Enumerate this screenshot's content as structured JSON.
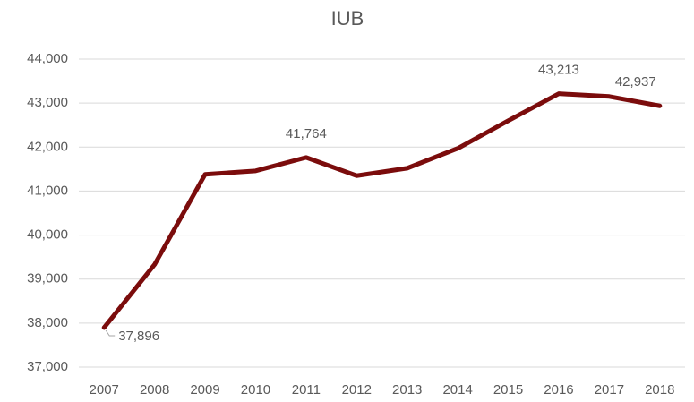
{
  "chart_data": {
    "type": "line",
    "title": "IUB",
    "categories": [
      "2007",
      "2008",
      "2009",
      "2010",
      "2011",
      "2012",
      "2013",
      "2014",
      "2015",
      "2016",
      "2017",
      "2018"
    ],
    "series": [
      {
        "name": "IUB",
        "color": "#7b0c0c",
        "values": [
          37896,
          39330,
          41380,
          41460,
          41764,
          41350,
          41520,
          41970,
          42600,
          43213,
          43150,
          42937
        ],
        "value_labels": [
          "37,896",
          null,
          null,
          null,
          "41,764",
          null,
          null,
          null,
          null,
          "43,213",
          null,
          "42,937"
        ]
      }
    ],
    "ylim": [
      37000,
      44000
    ],
    "yticks": [
      {
        "value": 37000,
        "label": "37,000"
      },
      {
        "value": 38000,
        "label": "38,000"
      },
      {
        "value": 39000,
        "label": "39,000"
      },
      {
        "value": 40000,
        "label": "40,000"
      },
      {
        "value": 41000,
        "label": "41,000"
      },
      {
        "value": 42000,
        "label": "42,000"
      },
      {
        "value": 43000,
        "label": "43,000"
      },
      {
        "value": 44000,
        "label": "44,000"
      }
    ],
    "grid": true
  }
}
